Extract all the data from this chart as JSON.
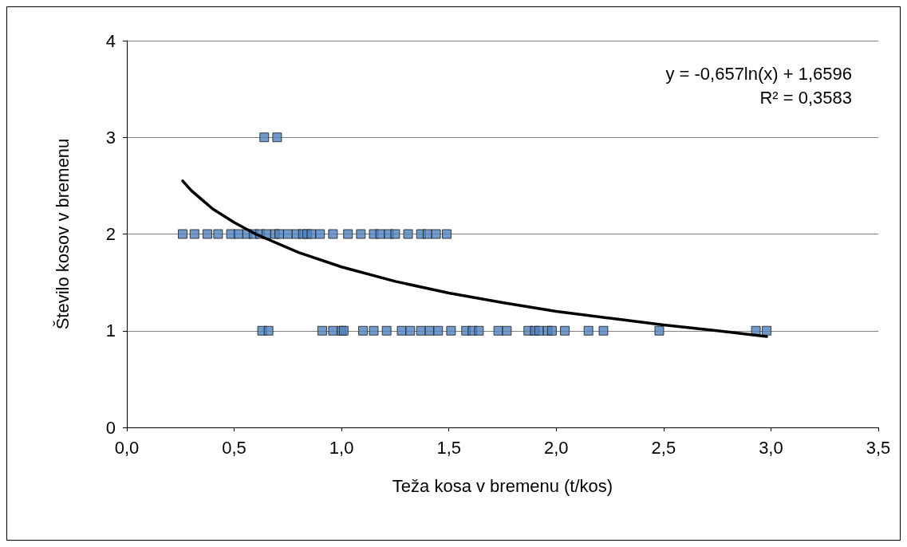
{
  "chart_data": {
    "type": "scatter",
    "xlabel": "Teža kosa v bremenu (t/kos)",
    "ylabel": "Število kosov v bremenu",
    "annotations": [
      "y = -0,657ln(x) + 1,6596",
      "R² = 0,3583"
    ],
    "xlim": [
      0,
      3.5
    ],
    "xticks": [
      {
        "value": 0,
        "label": "0,0"
      },
      {
        "value": 0.5,
        "label": "0,5"
      },
      {
        "value": 1,
        "label": "1,0"
      },
      {
        "value": 1.5,
        "label": "1,5"
      },
      {
        "value": 2,
        "label": "2,0"
      },
      {
        "value": 2.5,
        "label": "2,5"
      },
      {
        "value": 3,
        "label": "3,0"
      },
      {
        "value": 3.5,
        "label": "3,5"
      }
    ],
    "ylim": [
      0,
      4
    ],
    "yticks": [
      0,
      1,
      2,
      3,
      4
    ],
    "grid": "y",
    "series": [
      {
        "marker": "square",
        "color": "#4f81bd",
        "x": [
          0.26,
          0.315,
          0.375,
          0.425,
          0.485,
          0.52,
          0.56,
          0.59,
          0.62,
          0.65,
          0.69,
          0.71,
          0.75,
          0.79,
          0.82,
          0.84,
          0.86,
          0.9,
          0.96,
          1.03,
          1.09,
          1.15,
          1.18,
          1.22,
          1.25,
          1.31,
          1.37,
          1.4,
          1.44,
          1.49,
          0.63,
          0.66,
          0.91,
          0.96,
          1.0,
          1.01,
          1.1,
          1.15,
          1.21,
          1.28,
          1.32,
          1.37,
          1.41,
          1.45,
          1.51,
          1.58,
          1.61,
          1.64,
          1.73,
          1.77,
          1.87,
          1.9,
          1.92,
          1.96,
          1.98,
          2.04,
          2.15,
          2.22,
          2.48,
          2.93,
          2.98,
          0.64,
          0.7
        ],
        "values": [
          2,
          2,
          2,
          2,
          2,
          2,
          2,
          2,
          2,
          2,
          2,
          2,
          2,
          2,
          2,
          2,
          2,
          2,
          2,
          2,
          2,
          2,
          2,
          2,
          2,
          2,
          2,
          2,
          2,
          2,
          1,
          1,
          1,
          1,
          1,
          1,
          1,
          1,
          1,
          1,
          1,
          1,
          1,
          1,
          1,
          1,
          1,
          1,
          1,
          1,
          1,
          1,
          1,
          1,
          1,
          1,
          1,
          1,
          1,
          1,
          1,
          3,
          3
        ]
      },
      {
        "type": "line",
        "marker": "none",
        "color": "#000000",
        "x": [
          0.26,
          0.3,
          0.4,
          0.5,
          0.6,
          0.8,
          1.0,
          1.25,
          1.5,
          1.75,
          2.0,
          2.25,
          2.5,
          2.75,
          2.98
        ],
        "values": [
          2.55,
          2.45,
          2.26,
          2.12,
          2.0,
          1.81,
          1.66,
          1.51,
          1.39,
          1.29,
          1.2,
          1.13,
          1.06,
          1.0,
          0.94
        ]
      }
    ]
  }
}
